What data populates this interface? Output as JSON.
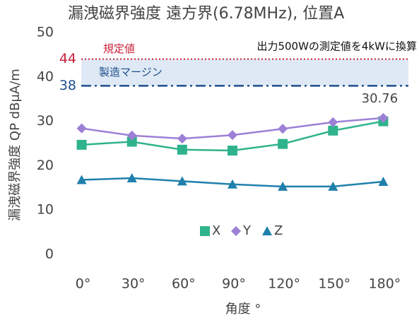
{
  "chart_data": {
    "type": "line",
    "title": "漏洩磁界強度 遠方界(6.78MHz), 位置A",
    "y_label": "漏洩磁界強度 QP dBμA/m",
    "x_label": "角度 °",
    "note": "出力500Wの測定値を4kWに換算",
    "categories": [
      "0°",
      "30°",
      "60°",
      "90°",
      "120°",
      "150°",
      "180°"
    ],
    "series": [
      {
        "name": "X",
        "color": "#2fb38c",
        "marker": "square",
        "values": [
          24.7,
          25.4,
          23.6,
          23.4,
          24.9,
          27.9,
          30.0
        ]
      },
      {
        "name": "Y",
        "color": "#9d80d6",
        "marker": "diamond",
        "values": [
          28.4,
          26.8,
          26.1,
          26.9,
          28.3,
          29.8,
          30.76
        ],
        "value_labels": [
          null,
          null,
          null,
          null,
          null,
          null,
          "30.76"
        ]
      },
      {
        "name": "Z",
        "color": "#1f80ab",
        "marker": "triangle",
        "values": [
          16.8,
          17.2,
          16.5,
          15.8,
          15.3,
          15.3,
          16.4
        ]
      }
    ],
    "reference_lines": [
      {
        "value": 44,
        "label": "規定値",
        "color": "#c8203a",
        "style": "dotted"
      },
      {
        "value": 38,
        "label": "製造マージン",
        "color": "#1f4e8c",
        "style": "dashdot"
      }
    ],
    "band_color": "#dfe9f5",
    "ylim": [
      0,
      50
    ],
    "yticks": [
      0,
      10,
      20,
      30,
      40,
      50
    ],
    "grid": false,
    "legend": "bottom"
  }
}
